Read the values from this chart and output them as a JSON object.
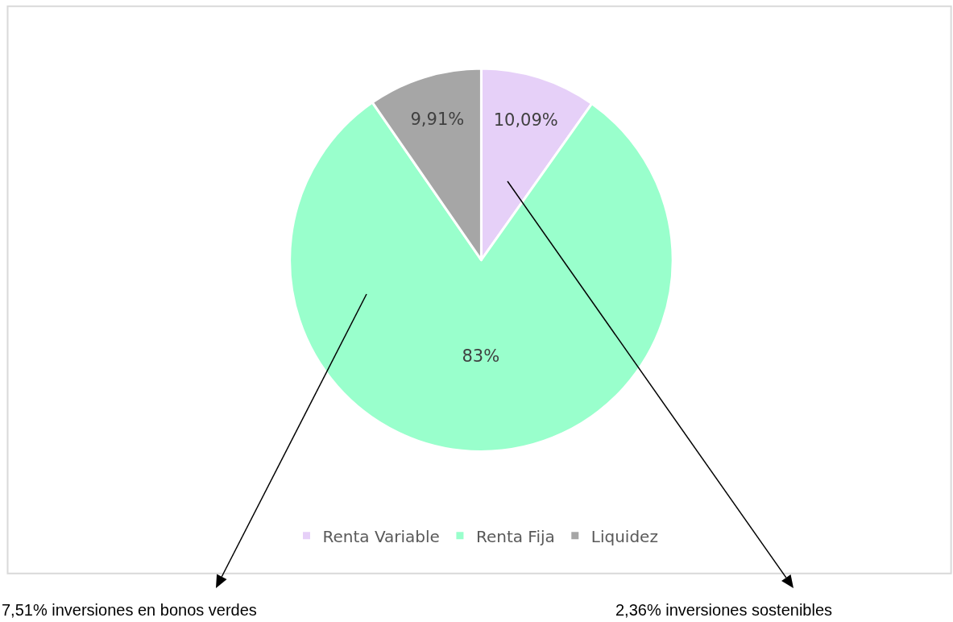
{
  "chart_data": {
    "type": "pie",
    "categories": [
      "Renta Variable",
      "Renta Fija",
      "Liquidez"
    ],
    "values": [
      10.09,
      83,
      9.91
    ],
    "colors": [
      "#e6d0f8",
      "#99ffcc",
      "#a6a6a6"
    ],
    "value_labels": [
      "10,09%",
      "83%",
      "9,91%"
    ],
    "legend": "bottom",
    "annotations": [
      "7,51% inversiones en bonos verdes",
      "2,36% inversiones sostenibles"
    ]
  }
}
